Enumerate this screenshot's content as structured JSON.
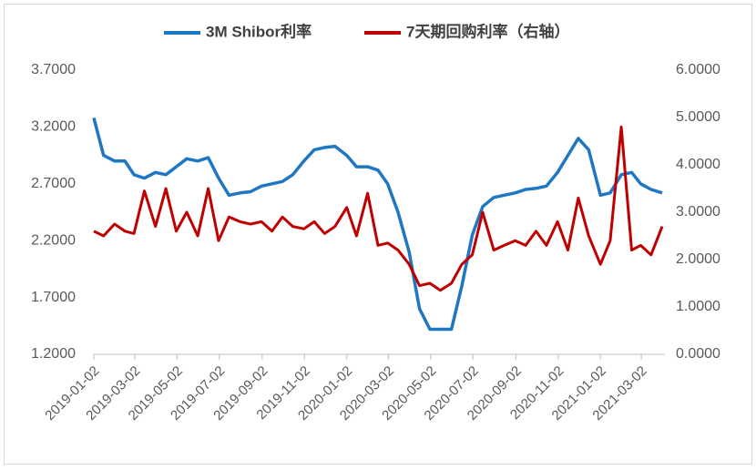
{
  "chart_data": {
    "type": "line",
    "x": [
      "2019-01-02",
      "2019-01-16",
      "2019-02-01",
      "2019-02-16",
      "2019-03-01",
      "2019-03-16",
      "2019-04-01",
      "2019-04-16",
      "2019-05-01",
      "2019-05-16",
      "2019-06-01",
      "2019-06-16",
      "2019-07-01",
      "2019-07-16",
      "2019-08-01",
      "2019-08-16",
      "2019-09-01",
      "2019-09-16",
      "2019-10-01",
      "2019-10-16",
      "2019-11-01",
      "2019-11-16",
      "2019-12-01",
      "2019-12-16",
      "2020-01-02",
      "2020-01-16",
      "2020-02-01",
      "2020-02-16",
      "2020-03-01",
      "2020-03-16",
      "2020-04-01",
      "2020-04-16",
      "2020-05-01",
      "2020-05-16",
      "2020-06-01",
      "2020-06-16",
      "2020-07-01",
      "2020-07-16",
      "2020-08-01",
      "2020-08-16",
      "2020-09-01",
      "2020-09-16",
      "2020-10-01",
      "2020-10-16",
      "2020-11-01",
      "2020-11-16",
      "2020-12-01",
      "2020-12-16",
      "2021-01-02",
      "2021-01-16",
      "2021-02-01",
      "2021-02-16",
      "2021-03-01",
      "2021-03-16",
      "2021-04-01"
    ],
    "series": [
      {
        "name": "3M Shibor利率",
        "color": "#1f77c4",
        "axis": "y",
        "values": [
          3.28,
          2.95,
          2.9,
          2.9,
          2.78,
          2.75,
          2.8,
          2.78,
          2.85,
          2.92,
          2.9,
          2.93,
          2.75,
          2.6,
          2.62,
          2.63,
          2.68,
          2.7,
          2.72,
          2.78,
          2.9,
          3.0,
          3.02,
          3.03,
          2.95,
          2.85,
          2.85,
          2.82,
          2.7,
          2.45,
          2.1,
          1.6,
          1.42,
          1.42,
          1.42,
          1.8,
          2.25,
          2.5,
          2.58,
          2.6,
          2.62,
          2.65,
          2.66,
          2.68,
          2.8,
          2.95,
          3.1,
          3.0,
          2.6,
          2.62,
          2.78,
          2.8,
          2.7,
          2.65,
          2.62
        ]
      },
      {
        "name": "7天期回购利率（右轴）",
        "color": "#c00000",
        "axis": "y2",
        "values": [
          2.6,
          2.5,
          2.75,
          2.6,
          2.55,
          3.45,
          2.7,
          3.5,
          2.6,
          3.0,
          2.5,
          3.5,
          2.4,
          2.9,
          2.8,
          2.75,
          2.8,
          2.6,
          2.9,
          2.7,
          2.65,
          2.8,
          2.55,
          2.7,
          3.1,
          2.5,
          3.4,
          2.3,
          2.35,
          2.2,
          1.9,
          1.45,
          1.5,
          1.35,
          1.5,
          1.9,
          2.1,
          3.0,
          2.2,
          2.3,
          2.4,
          2.3,
          2.6,
          2.3,
          2.8,
          2.2,
          3.3,
          2.5,
          1.9,
          2.4,
          4.8,
          2.2,
          2.3,
          2.1,
          2.7
        ]
      }
    ],
    "xlim": [
      "2019-01-02",
      "2021-04-05"
    ],
    "xticks": [
      "2019-01-02",
      "2019-03-02",
      "2019-05-02",
      "2019-07-02",
      "2019-09-02",
      "2019-11-02",
      "2020-01-02",
      "2020-03-02",
      "2020-05-02",
      "2020-07-02",
      "2020-09-02",
      "2020-11-02",
      "2021-01-02",
      "2021-03-02"
    ],
    "ylim": [
      1.2,
      3.7
    ],
    "yticks": [
      {
        "value": 1.2,
        "label": "1.2000"
      },
      {
        "value": 1.7,
        "label": "1.7000"
      },
      {
        "value": 2.2,
        "label": "2.2000"
      },
      {
        "value": 2.7,
        "label": "2.7000"
      },
      {
        "value": 3.2,
        "label": "3.2000"
      },
      {
        "value": 3.7,
        "label": "3.7000"
      }
    ],
    "y2lim": [
      0,
      6
    ],
    "y2ticks": [
      {
        "value": 0,
        "label": "0.0000"
      },
      {
        "value": 1,
        "label": "1.0000"
      },
      {
        "value": 2,
        "label": "2.0000"
      },
      {
        "value": 3,
        "label": "3.0000"
      },
      {
        "value": 4,
        "label": "4.0000"
      },
      {
        "value": 5,
        "label": "5.0000"
      },
      {
        "value": 6,
        "label": "6.0000"
      }
    ],
    "legend": "top"
  }
}
